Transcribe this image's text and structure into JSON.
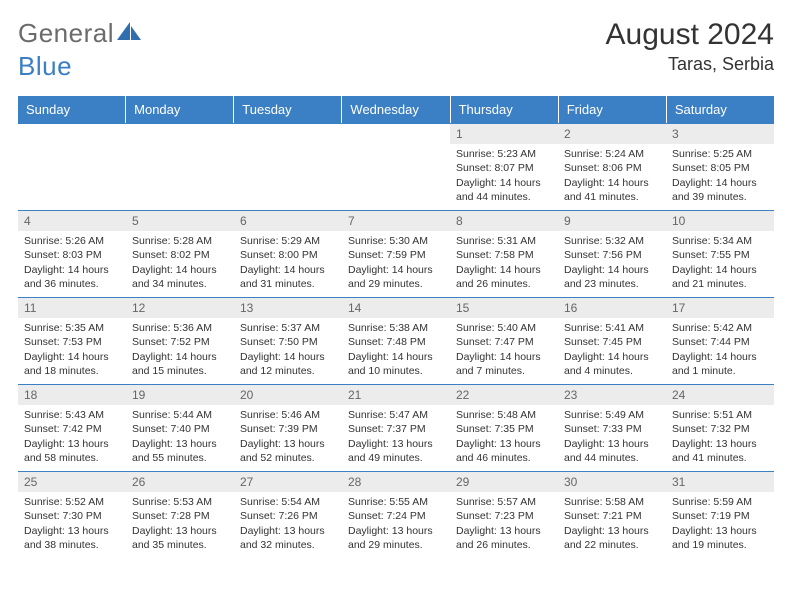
{
  "brand": {
    "word1": "General",
    "word2": "Blue"
  },
  "title": "August 2024",
  "location": "Taras, Serbia",
  "colors": {
    "header_bg": "#3b7fc4",
    "header_text": "#ffffff",
    "daynum_bg": "#ececec",
    "daynum_text": "#666666",
    "cell_text": "#333333",
    "divider": "#3b7fc4"
  },
  "daynames": [
    "Sunday",
    "Monday",
    "Tuesday",
    "Wednesday",
    "Thursday",
    "Friday",
    "Saturday"
  ],
  "weeks": [
    [
      {
        "n": "",
        "sr": "",
        "ss": "",
        "dl1": "",
        "dl2": ""
      },
      {
        "n": "",
        "sr": "",
        "ss": "",
        "dl1": "",
        "dl2": ""
      },
      {
        "n": "",
        "sr": "",
        "ss": "",
        "dl1": "",
        "dl2": ""
      },
      {
        "n": "",
        "sr": "",
        "ss": "",
        "dl1": "",
        "dl2": ""
      },
      {
        "n": "1",
        "sr": "Sunrise: 5:23 AM",
        "ss": "Sunset: 8:07 PM",
        "dl1": "Daylight: 14 hours",
        "dl2": "and 44 minutes."
      },
      {
        "n": "2",
        "sr": "Sunrise: 5:24 AM",
        "ss": "Sunset: 8:06 PM",
        "dl1": "Daylight: 14 hours",
        "dl2": "and 41 minutes."
      },
      {
        "n": "3",
        "sr": "Sunrise: 5:25 AM",
        "ss": "Sunset: 8:05 PM",
        "dl1": "Daylight: 14 hours",
        "dl2": "and 39 minutes."
      }
    ],
    [
      {
        "n": "4",
        "sr": "Sunrise: 5:26 AM",
        "ss": "Sunset: 8:03 PM",
        "dl1": "Daylight: 14 hours",
        "dl2": "and 36 minutes."
      },
      {
        "n": "5",
        "sr": "Sunrise: 5:28 AM",
        "ss": "Sunset: 8:02 PM",
        "dl1": "Daylight: 14 hours",
        "dl2": "and 34 minutes."
      },
      {
        "n": "6",
        "sr": "Sunrise: 5:29 AM",
        "ss": "Sunset: 8:00 PM",
        "dl1": "Daylight: 14 hours",
        "dl2": "and 31 minutes."
      },
      {
        "n": "7",
        "sr": "Sunrise: 5:30 AM",
        "ss": "Sunset: 7:59 PM",
        "dl1": "Daylight: 14 hours",
        "dl2": "and 29 minutes."
      },
      {
        "n": "8",
        "sr": "Sunrise: 5:31 AM",
        "ss": "Sunset: 7:58 PM",
        "dl1": "Daylight: 14 hours",
        "dl2": "and 26 minutes."
      },
      {
        "n": "9",
        "sr": "Sunrise: 5:32 AM",
        "ss": "Sunset: 7:56 PM",
        "dl1": "Daylight: 14 hours",
        "dl2": "and 23 minutes."
      },
      {
        "n": "10",
        "sr": "Sunrise: 5:34 AM",
        "ss": "Sunset: 7:55 PM",
        "dl1": "Daylight: 14 hours",
        "dl2": "and 21 minutes."
      }
    ],
    [
      {
        "n": "11",
        "sr": "Sunrise: 5:35 AM",
        "ss": "Sunset: 7:53 PM",
        "dl1": "Daylight: 14 hours",
        "dl2": "and 18 minutes."
      },
      {
        "n": "12",
        "sr": "Sunrise: 5:36 AM",
        "ss": "Sunset: 7:52 PM",
        "dl1": "Daylight: 14 hours",
        "dl2": "and 15 minutes."
      },
      {
        "n": "13",
        "sr": "Sunrise: 5:37 AM",
        "ss": "Sunset: 7:50 PM",
        "dl1": "Daylight: 14 hours",
        "dl2": "and 12 minutes."
      },
      {
        "n": "14",
        "sr": "Sunrise: 5:38 AM",
        "ss": "Sunset: 7:48 PM",
        "dl1": "Daylight: 14 hours",
        "dl2": "and 10 minutes."
      },
      {
        "n": "15",
        "sr": "Sunrise: 5:40 AM",
        "ss": "Sunset: 7:47 PM",
        "dl1": "Daylight: 14 hours",
        "dl2": "and 7 minutes."
      },
      {
        "n": "16",
        "sr": "Sunrise: 5:41 AM",
        "ss": "Sunset: 7:45 PM",
        "dl1": "Daylight: 14 hours",
        "dl2": "and 4 minutes."
      },
      {
        "n": "17",
        "sr": "Sunrise: 5:42 AM",
        "ss": "Sunset: 7:44 PM",
        "dl1": "Daylight: 14 hours",
        "dl2": "and 1 minute."
      }
    ],
    [
      {
        "n": "18",
        "sr": "Sunrise: 5:43 AM",
        "ss": "Sunset: 7:42 PM",
        "dl1": "Daylight: 13 hours",
        "dl2": "and 58 minutes."
      },
      {
        "n": "19",
        "sr": "Sunrise: 5:44 AM",
        "ss": "Sunset: 7:40 PM",
        "dl1": "Daylight: 13 hours",
        "dl2": "and 55 minutes."
      },
      {
        "n": "20",
        "sr": "Sunrise: 5:46 AM",
        "ss": "Sunset: 7:39 PM",
        "dl1": "Daylight: 13 hours",
        "dl2": "and 52 minutes."
      },
      {
        "n": "21",
        "sr": "Sunrise: 5:47 AM",
        "ss": "Sunset: 7:37 PM",
        "dl1": "Daylight: 13 hours",
        "dl2": "and 49 minutes."
      },
      {
        "n": "22",
        "sr": "Sunrise: 5:48 AM",
        "ss": "Sunset: 7:35 PM",
        "dl1": "Daylight: 13 hours",
        "dl2": "and 46 minutes."
      },
      {
        "n": "23",
        "sr": "Sunrise: 5:49 AM",
        "ss": "Sunset: 7:33 PM",
        "dl1": "Daylight: 13 hours",
        "dl2": "and 44 minutes."
      },
      {
        "n": "24",
        "sr": "Sunrise: 5:51 AM",
        "ss": "Sunset: 7:32 PM",
        "dl1": "Daylight: 13 hours",
        "dl2": "and 41 minutes."
      }
    ],
    [
      {
        "n": "25",
        "sr": "Sunrise: 5:52 AM",
        "ss": "Sunset: 7:30 PM",
        "dl1": "Daylight: 13 hours",
        "dl2": "and 38 minutes."
      },
      {
        "n": "26",
        "sr": "Sunrise: 5:53 AM",
        "ss": "Sunset: 7:28 PM",
        "dl1": "Daylight: 13 hours",
        "dl2": "and 35 minutes."
      },
      {
        "n": "27",
        "sr": "Sunrise: 5:54 AM",
        "ss": "Sunset: 7:26 PM",
        "dl1": "Daylight: 13 hours",
        "dl2": "and 32 minutes."
      },
      {
        "n": "28",
        "sr": "Sunrise: 5:55 AM",
        "ss": "Sunset: 7:24 PM",
        "dl1": "Daylight: 13 hours",
        "dl2": "and 29 minutes."
      },
      {
        "n": "29",
        "sr": "Sunrise: 5:57 AM",
        "ss": "Sunset: 7:23 PM",
        "dl1": "Daylight: 13 hours",
        "dl2": "and 26 minutes."
      },
      {
        "n": "30",
        "sr": "Sunrise: 5:58 AM",
        "ss": "Sunset: 7:21 PM",
        "dl1": "Daylight: 13 hours",
        "dl2": "and 22 minutes."
      },
      {
        "n": "31",
        "sr": "Sunrise: 5:59 AM",
        "ss": "Sunset: 7:19 PM",
        "dl1": "Daylight: 13 hours",
        "dl2": "and 19 minutes."
      }
    ]
  ]
}
